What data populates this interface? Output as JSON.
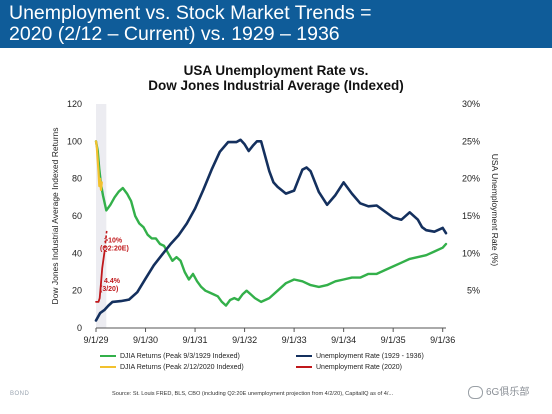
{
  "header": {
    "title_line1": "Unemployment vs. Stock Market Trends =",
    "title_line2": "2020 (2/12 – Current) vs. 1929 – 1936"
  },
  "colors": {
    "header_bg": "#0f5c99",
    "djia_1929": "#33b04a",
    "djia_2020": "#f2c12e",
    "unemployment_1929": "#14305e",
    "unemployment_2020": "#c0181b",
    "highlight": "#ececf1"
  },
  "chart_data": {
    "type": "line",
    "title_line1": "USA Unemployment Rate vs.",
    "title_line2": "Dow Jones Industrial Average (Indexed)",
    "ylabel_left": "Dow Jones Industrial Average Indexed Returns",
    "ylabel_right": "USA Unemployment Rate (%)",
    "y_left_ticks": [
      "0",
      "20",
      "40",
      "60",
      "80",
      "100",
      "120"
    ],
    "y_right_ticks": [
      "",
      "5%",
      "10%",
      "15%",
      "20%",
      "25%",
      "30%"
    ],
    "x_ticks": [
      "9/1/29",
      "9/1/30",
      "9/1/31",
      "9/1/32",
      "9/1/33",
      "9/1/34",
      "9/1/35",
      "9/1/36"
    ],
    "ylim_left": [
      0,
      120
    ],
    "ylim_right": [
      0,
      30
    ],
    "x_unit": "months since 9/1/29",
    "highlight_x": [
      0,
      2.5
    ],
    "series": [
      {
        "name": "DJIA Returns (Peak 9/3/1929 Indexed)",
        "axis": "left",
        "x": [
          0,
          0.4,
          0.8,
          1.2,
          1.7,
          2.5,
          3.5,
          4.5,
          5.5,
          6.5,
          7.5,
          8.5,
          9.5,
          10.5,
          11.5,
          12.5,
          13.5,
          14.5,
          15.5,
          16.5,
          17.5,
          18.5,
          19.5,
          20.5,
          21.5,
          22.5,
          23.5,
          24.5,
          25.5,
          26.5,
          27.5,
          28.5,
          29.5,
          30.5,
          31.5,
          32.5,
          33.5,
          34.5,
          35.5,
          36.5,
          37.5,
          38.5,
          40,
          42,
          44,
          46,
          48,
          50,
          52,
          54,
          56,
          58,
          60,
          62,
          64,
          66,
          68,
          70,
          72,
          74,
          76,
          78,
          80,
          82,
          84,
          84.8
        ],
        "y": [
          100,
          95,
          85,
          77,
          71,
          63,
          66,
          70,
          73,
          75,
          72,
          68,
          60,
          56,
          54,
          50,
          48,
          48,
          45,
          44,
          40,
          36,
          38,
          36,
          30,
          26,
          29,
          25,
          22,
          20,
          19,
          18,
          17,
          14,
          12,
          15,
          16,
          15,
          18,
          20,
          18,
          16,
          14,
          16,
          20,
          24,
          26,
          25,
          23,
          22,
          23,
          25,
          26,
          27,
          27,
          29,
          29,
          31,
          33,
          35,
          37,
          38,
          39,
          41,
          43,
          45
        ]
      },
      {
        "name": "DJIA Returns (Peak 2/12/2020 Indexed)",
        "axis": "left",
        "x": [
          0,
          0.2,
          0.4,
          0.6,
          0.8,
          1.0,
          1.2,
          1.4
        ],
        "y": [
          100,
          97,
          90,
          84,
          76,
          80,
          74,
          78
        ]
      },
      {
        "name": "Unemployment Rate (1929 - 1936)",
        "axis": "right",
        "x": [
          0,
          1,
          2,
          3,
          4,
          6,
          8,
          10,
          12,
          14,
          16,
          18,
          20,
          22,
          24,
          26,
          28,
          30,
          32,
          34,
          35,
          36,
          37,
          38,
          39,
          40,
          42,
          43,
          44,
          46,
          48,
          49,
          50,
          51,
          52,
          54,
          56,
          58,
          60,
          62,
          64,
          66,
          68,
          70,
          72,
          74,
          76,
          78,
          79,
          80,
          82,
          84,
          84.8
        ],
        "y": [
          1.0,
          2.0,
          2.4,
          3.0,
          3.5,
          3.6,
          3.8,
          4.8,
          6.6,
          8.4,
          9.8,
          11.2,
          12.4,
          14.0,
          16.0,
          18.5,
          21.2,
          23.6,
          24.9,
          24.9,
          25.2,
          24.6,
          23.7,
          24.4,
          25.0,
          25.0,
          21.0,
          19.5,
          18.9,
          18.0,
          18.4,
          19.8,
          21.2,
          21.5,
          21.0,
          18.2,
          16.5,
          17.8,
          19.5,
          18.0,
          16.7,
          16.3,
          16.4,
          15.6,
          14.8,
          14.5,
          15.5,
          14.5,
          13.5,
          13.1,
          12.9,
          13.4,
          12.7
        ]
      },
      {
        "name": "Unemployment Rate (2020)",
        "axis": "right",
        "x": [
          0.0,
          0.3,
          0.6,
          0.9,
          1.2,
          1.5,
          2.0
        ],
        "y": [
          3.5,
          3.5,
          3.5,
          4.0,
          6.0,
          8.0,
          10.0
        ]
      }
    ],
    "annotations": [
      {
        "text_line1": ">10%",
        "text_line2": "(Q2:20E)",
        "x": 0.4,
        "y_right": 10.9
      },
      {
        "text_line1": "4.4%",
        "text_line2": "(3/20)",
        "x": 0.6,
        "y_right": 5.5
      }
    ],
    "legend": [
      {
        "label": "DJIA Returns (Peak 9/3/1929 Indexed)",
        "color": "#33b04a"
      },
      {
        "label": "Unemployment Rate (1929 - 1936)",
        "color": "#14305e"
      },
      {
        "label": "DJIA Returns (Peak 2/12/2020 Indexed)",
        "color": "#f2c12e"
      },
      {
        "label": "Unemployment Rate (2020)",
        "color": "#c0181b"
      }
    ],
    "legend_position": "bottom",
    "source": "Source: St. Louis FRED, BLS, CBO (including Q2:20E unemployment projection from 4/2/20), CapitalIQ as of 4/... "
  },
  "footer": {
    "brand": "BOND",
    "watermark": "6G俱乐部"
  }
}
